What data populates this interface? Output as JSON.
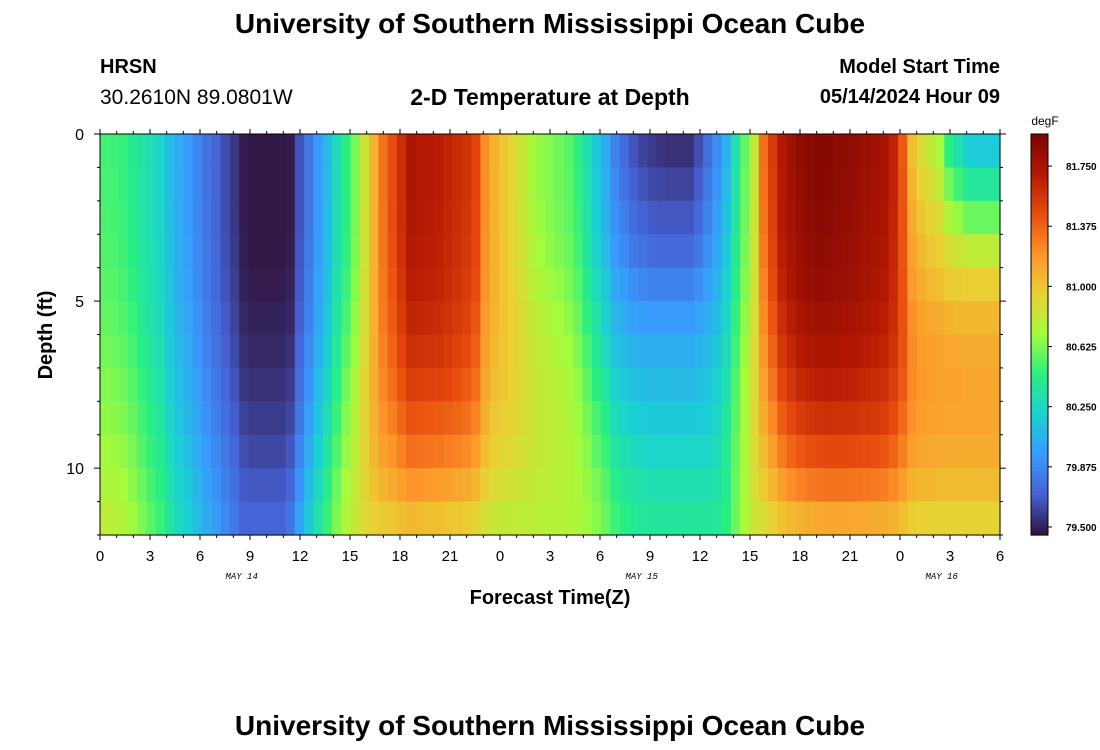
{
  "header": {
    "title": "University of Southern Mississippi Ocean Cube",
    "station": "HRSN",
    "coords": "30.2610N  89.0801W",
    "subtitle": "2-D Temperature at Depth",
    "model_label": "Model Start Time",
    "model_time": "05/14/2024 Hour 09"
  },
  "footer": {
    "title": "University of Southern Mississippi Ocean Cube"
  },
  "chart_data": {
    "type": "heatmap",
    "title": "2-D Temperature at Depth",
    "xlabel": "Forecast Time(Z)",
    "ylabel": "Depth (ft)",
    "x_tick_labels": [
      "0",
      "3",
      "6",
      "9",
      "12",
      "15",
      "18",
      "21",
      "0",
      "3",
      "6",
      "9",
      "12",
      "15",
      "18",
      "21",
      "0",
      "3",
      "6"
    ],
    "date_labels": [
      "MAY 14",
      "MAY 15",
      "MAY 16"
    ],
    "y_ticks": [
      0,
      5,
      10
    ],
    "ylim": [
      0,
      12
    ],
    "y_inverted": true,
    "x_range_hours": [
      0,
      54
    ],
    "x_hour_start": 0,
    "x_hour_step": 1,
    "depths_ft": [
      0.5,
      1.5,
      2.5,
      3.5,
      4.5,
      5.5,
      6.5,
      7.5,
      8.5,
      9.5,
      10.5,
      11.5
    ],
    "colorbar": {
      "unit": "degF",
      "min": 79.45,
      "max": 81.95,
      "ticks": [
        "81.750",
        "81.375",
        "81.000",
        "80.625",
        "80.250",
        "79.875",
        "79.500"
      ],
      "colormap": "turbo"
    },
    "note": "values in degF, rows = depth bins (top to bottom), columns = hourly forecast steps",
    "temperature_degF": [
      [
        80.5,
        80.49,
        80.47,
        80.41,
        80.35,
        80.3,
        80.23,
        80.11,
        80.02,
        79.95,
        79.86,
        79.78,
        79.72,
        79.64,
        79.57,
        79.48,
        79.47,
        79.47,
        79.47,
        79.47,
        79.48,
        79.66,
        79.8,
        79.95,
        80.09,
        80.28,
        80.45,
        80.61,
        80.84,
        81.07,
        81.32,
        81.45,
        81.59,
        81.73,
        81.71,
        81.7,
        81.68,
        81.64,
        81.61,
        81.57,
        81.49,
        81.22,
        81.07,
        81.0,
        80.91,
        80.82,
        80.73,
        80.67,
        80.63,
        80.59,
        80.55,
        80.46,
        80.31,
        80.16,
        80.02,
        79.85,
        79.75,
        79.66,
        79.61,
        79.58,
        79.56,
        79.55,
        79.55,
        79.55,
        79.64,
        79.76,
        79.89,
        80.05,
        80.32,
        80.56,
        80.81,
        81.33,
        81.53,
        81.71,
        81.79,
        81.85,
        81.88,
        81.9,
        81.89,
        81.87,
        81.86,
        81.84,
        81.81,
        81.79,
        81.75,
        81.65,
        81.41,
        81.03,
        80.9,
        80.81,
        80.71,
        80.45,
        80.32,
        80.2,
        80.18,
        80.18,
        80.18
      ],
      [
        80.51,
        80.5,
        80.47,
        80.42,
        80.35,
        80.3,
        80.23,
        80.11,
        80.03,
        79.95,
        79.86,
        79.78,
        79.72,
        79.64,
        79.57,
        79.48,
        79.47,
        79.47,
        79.47,
        79.47,
        79.48,
        79.66,
        79.8,
        79.95,
        80.09,
        80.28,
        80.45,
        80.61,
        80.84,
        81.07,
        81.32,
        81.45,
        81.59,
        81.73,
        81.71,
        81.7,
        81.68,
        81.64,
        81.61,
        81.57,
        81.49,
        81.22,
        81.08,
        81.0,
        80.91,
        80.82,
        80.73,
        80.67,
        80.63,
        80.59,
        80.56,
        80.47,
        80.32,
        80.18,
        80.05,
        79.88,
        79.79,
        79.7,
        79.66,
        79.63,
        79.62,
        79.61,
        79.61,
        79.61,
        79.69,
        79.81,
        79.93,
        80.09,
        80.34,
        80.58,
        80.82,
        81.32,
        81.52,
        81.71,
        81.78,
        81.84,
        81.87,
        81.89,
        81.88,
        81.86,
        81.85,
        81.83,
        81.8,
        81.78,
        81.75,
        81.65,
        81.42,
        81.07,
        80.95,
        80.88,
        80.8,
        80.6,
        80.49,
        80.39,
        80.38,
        80.38,
        80.38
      ],
      [
        80.52,
        80.51,
        80.48,
        80.43,
        80.36,
        80.3,
        80.24,
        80.12,
        80.03,
        79.96,
        79.87,
        79.79,
        79.72,
        79.64,
        79.57,
        79.48,
        79.47,
        79.47,
        79.47,
        79.47,
        79.48,
        79.66,
        79.8,
        79.95,
        80.1,
        80.29,
        80.45,
        80.61,
        80.85,
        81.07,
        81.31,
        81.45,
        81.59,
        81.72,
        81.7,
        81.69,
        81.67,
        81.63,
        81.6,
        81.56,
        81.48,
        81.22,
        81.08,
        81.0,
        80.92,
        80.83,
        80.74,
        80.68,
        80.64,
        80.6,
        80.57,
        80.48,
        80.34,
        80.2,
        80.07,
        79.91,
        79.83,
        79.75,
        79.71,
        79.68,
        79.67,
        79.67,
        79.67,
        79.67,
        79.74,
        79.85,
        79.97,
        80.13,
        80.37,
        80.59,
        80.83,
        81.31,
        81.51,
        81.7,
        81.77,
        81.83,
        81.86,
        81.88,
        81.87,
        81.85,
        81.84,
        81.82,
        81.79,
        81.77,
        81.74,
        81.64,
        81.43,
        81.11,
        81.0,
        80.94,
        80.88,
        80.74,
        80.67,
        80.59,
        80.58,
        80.58,
        80.58
      ],
      [
        80.53,
        80.52,
        80.49,
        80.44,
        80.37,
        80.31,
        80.25,
        80.13,
        80.04,
        79.97,
        79.88,
        79.8,
        79.73,
        79.65,
        79.58,
        79.49,
        79.47,
        79.47,
        79.47,
        79.47,
        79.49,
        79.67,
        79.81,
        79.96,
        80.11,
        80.3,
        80.46,
        80.62,
        80.85,
        81.07,
        81.31,
        81.44,
        81.58,
        81.71,
        81.69,
        81.68,
        81.66,
        81.62,
        81.59,
        81.55,
        81.47,
        81.21,
        81.08,
        81.01,
        80.93,
        80.85,
        80.76,
        80.7,
        80.66,
        80.62,
        80.59,
        80.5,
        80.36,
        80.23,
        80.1,
        79.95,
        79.88,
        79.81,
        79.78,
        79.75,
        79.74,
        79.74,
        79.74,
        79.74,
        79.8,
        79.9,
        80.01,
        80.17,
        80.4,
        80.61,
        80.84,
        81.29,
        81.49,
        81.68,
        81.75,
        81.81,
        81.84,
        81.86,
        81.85,
        81.83,
        81.82,
        81.8,
        81.77,
        81.75,
        81.72,
        81.63,
        81.43,
        81.15,
        81.05,
        81.0,
        80.96,
        80.88,
        80.84,
        80.8,
        80.79,
        80.79,
        80.79
      ],
      [
        80.55,
        80.54,
        80.51,
        80.46,
        80.39,
        80.32,
        80.26,
        80.14,
        80.05,
        79.98,
        79.89,
        79.81,
        79.74,
        79.66,
        79.59,
        79.5,
        79.48,
        79.48,
        79.48,
        79.48,
        79.5,
        79.68,
        79.83,
        79.98,
        80.13,
        80.32,
        80.48,
        80.64,
        80.86,
        81.08,
        81.3,
        81.42,
        81.56,
        81.68,
        81.67,
        81.66,
        81.64,
        81.6,
        81.57,
        81.53,
        81.45,
        81.2,
        81.08,
        81.01,
        80.95,
        80.87,
        80.79,
        80.73,
        80.69,
        80.66,
        80.62,
        80.54,
        80.41,
        80.28,
        80.16,
        80.02,
        79.96,
        79.9,
        79.87,
        79.85,
        79.85,
        79.85,
        79.85,
        79.85,
        79.9,
        79.97,
        80.06,
        80.21,
        80.43,
        80.63,
        80.85,
        81.26,
        81.46,
        81.65,
        81.73,
        81.79,
        81.82,
        81.84,
        81.83,
        81.82,
        81.81,
        81.79,
        81.76,
        81.74,
        81.71,
        81.62,
        81.44,
        81.18,
        81.1,
        81.06,
        81.02,
        80.98,
        80.97,
        80.96,
        80.96,
        80.96,
        80.96
      ],
      [
        80.57,
        80.56,
        80.53,
        80.48,
        80.41,
        80.34,
        80.28,
        80.16,
        80.07,
        80.0,
        79.91,
        79.83,
        79.76,
        79.68,
        79.61,
        79.52,
        79.5,
        79.5,
        79.5,
        79.5,
        79.52,
        79.7,
        79.85,
        80.0,
        80.16,
        80.35,
        80.51,
        80.66,
        80.88,
        81.08,
        81.29,
        81.4,
        81.53,
        81.64,
        81.63,
        81.62,
        81.6,
        81.57,
        81.54,
        81.5,
        81.42,
        81.18,
        81.07,
        81.01,
        80.96,
        80.89,
        80.82,
        80.77,
        80.73,
        80.7,
        80.66,
        80.58,
        80.46,
        80.34,
        80.22,
        80.08,
        80.03,
        79.98,
        79.96,
        79.95,
        79.95,
        79.95,
        79.95,
        79.95,
        79.99,
        80.04,
        80.11,
        80.25,
        80.47,
        80.66,
        80.87,
        81.23,
        81.42,
        81.6,
        81.68,
        81.74,
        81.77,
        81.79,
        81.79,
        81.78,
        81.77,
        81.75,
        81.73,
        81.71,
        81.68,
        81.6,
        81.44,
        81.22,
        81.15,
        81.12,
        81.1,
        81.07,
        81.06,
        81.05,
        81.05,
        81.05,
        81.05
      ],
      [
        80.6,
        80.59,
        80.56,
        80.51,
        80.44,
        80.37,
        80.3,
        80.18,
        80.09,
        80.02,
        79.93,
        79.85,
        79.78,
        79.7,
        79.63,
        79.54,
        79.52,
        79.52,
        79.52,
        79.52,
        79.55,
        79.73,
        79.88,
        80.04,
        80.2,
        80.39,
        80.55,
        80.69,
        80.9,
        81.09,
        81.27,
        81.37,
        81.49,
        81.59,
        81.58,
        81.57,
        81.56,
        81.53,
        81.5,
        81.46,
        81.38,
        81.16,
        81.05,
        81.0,
        80.96,
        80.9,
        80.84,
        80.79,
        80.76,
        80.73,
        80.7,
        80.62,
        80.51,
        80.39,
        80.28,
        80.15,
        80.1,
        80.06,
        80.04,
        80.03,
        80.03,
        80.03,
        80.03,
        80.03,
        80.06,
        80.1,
        80.16,
        80.29,
        80.5,
        80.68,
        80.89,
        81.19,
        81.37,
        81.55,
        81.63,
        81.69,
        81.72,
        81.74,
        81.74,
        81.73,
        81.72,
        81.71,
        81.69,
        81.67,
        81.64,
        81.57,
        81.43,
        81.24,
        81.18,
        81.16,
        81.14,
        81.12,
        81.12,
        81.11,
        81.11,
        81.11,
        81.11
      ],
      [
        80.63,
        80.62,
        80.59,
        80.54,
        80.47,
        80.4,
        80.33,
        80.21,
        80.12,
        80.05,
        79.96,
        79.88,
        79.81,
        79.73,
        79.66,
        79.57,
        79.55,
        79.55,
        79.55,
        79.55,
        79.58,
        79.76,
        79.92,
        80.09,
        80.25,
        80.43,
        80.59,
        80.73,
        80.92,
        81.09,
        81.24,
        81.33,
        81.43,
        81.52,
        81.51,
        81.5,
        81.49,
        81.47,
        81.44,
        81.4,
        81.33,
        81.13,
        81.03,
        80.99,
        80.95,
        80.9,
        80.85,
        80.81,
        80.78,
        80.75,
        80.72,
        80.66,
        80.56,
        80.45,
        80.35,
        80.22,
        80.17,
        80.13,
        80.11,
        80.1,
        80.1,
        80.1,
        80.1,
        80.1,
        80.12,
        80.15,
        80.21,
        80.33,
        80.53,
        80.7,
        80.9,
        81.15,
        81.31,
        81.48,
        81.56,
        81.62,
        81.65,
        81.67,
        81.68,
        81.67,
        81.66,
        81.65,
        81.63,
        81.61,
        81.59,
        81.52,
        81.4,
        81.24,
        81.19,
        81.17,
        81.15,
        81.14,
        81.14,
        81.13,
        81.13,
        81.13,
        81.13
      ],
      [
        80.66,
        80.65,
        80.62,
        80.57,
        80.5,
        80.43,
        80.36,
        80.24,
        80.15,
        80.08,
        79.99,
        79.91,
        79.84,
        79.76,
        79.69,
        79.6,
        79.58,
        79.58,
        79.58,
        79.58,
        79.62,
        79.8,
        79.97,
        80.14,
        80.3,
        80.48,
        80.63,
        80.76,
        80.93,
        81.08,
        81.2,
        81.27,
        81.36,
        81.43,
        81.42,
        81.41,
        81.4,
        81.38,
        81.36,
        81.33,
        81.26,
        81.09,
        81.0,
        80.96,
        80.93,
        80.89,
        80.85,
        80.81,
        80.79,
        80.77,
        80.74,
        80.69,
        80.6,
        80.51,
        80.42,
        80.29,
        80.24,
        80.2,
        80.18,
        80.17,
        80.17,
        80.17,
        80.17,
        80.17,
        80.18,
        80.2,
        80.25,
        80.37,
        80.55,
        80.71,
        80.9,
        81.1,
        81.24,
        81.39,
        81.47,
        81.53,
        81.56,
        81.58,
        81.59,
        81.58,
        81.58,
        81.57,
        81.55,
        81.54,
        81.52,
        81.46,
        81.35,
        81.21,
        81.17,
        81.15,
        81.14,
        81.13,
        81.13,
        81.13,
        81.13,
        81.13,
        81.13
      ],
      [
        80.7,
        80.69,
        80.66,
        80.61,
        80.54,
        80.47,
        80.4,
        80.28,
        80.19,
        80.12,
        80.03,
        79.95,
        79.88,
        79.8,
        79.73,
        79.64,
        79.62,
        79.62,
        79.62,
        79.62,
        79.67,
        79.86,
        80.03,
        80.2,
        80.36,
        80.53,
        80.67,
        80.78,
        80.93,
        81.05,
        81.14,
        81.2,
        81.27,
        81.33,
        81.32,
        81.31,
        81.3,
        81.28,
        81.26,
        81.23,
        81.17,
        81.03,
        80.96,
        80.92,
        80.9,
        80.87,
        80.84,
        80.81,
        80.79,
        80.77,
        80.75,
        80.71,
        80.64,
        80.56,
        80.48,
        80.36,
        80.31,
        80.27,
        80.25,
        80.24,
        80.24,
        80.24,
        80.24,
        80.24,
        80.24,
        80.25,
        80.29,
        80.4,
        80.57,
        80.72,
        80.89,
        81.04,
        81.16,
        81.29,
        81.36,
        81.41,
        81.44,
        81.46,
        81.47,
        81.47,
        81.47,
        81.46,
        81.45,
        81.44,
        81.42,
        81.37,
        81.28,
        81.16,
        81.13,
        81.12,
        81.11,
        81.1,
        81.1,
        81.1,
        81.1,
        81.1,
        81.1
      ],
      [
        80.74,
        80.73,
        80.7,
        80.65,
        80.58,
        80.51,
        80.44,
        80.32,
        80.23,
        80.16,
        80.07,
        79.99,
        79.92,
        79.84,
        79.77,
        79.68,
        79.67,
        79.67,
        79.67,
        79.67,
        79.73,
        79.92,
        80.1,
        80.27,
        80.42,
        80.58,
        80.71,
        80.8,
        80.92,
        81.01,
        81.07,
        81.11,
        81.16,
        81.2,
        81.19,
        81.18,
        81.17,
        81.15,
        81.13,
        81.11,
        81.06,
        80.96,
        80.9,
        80.87,
        80.85,
        80.83,
        80.81,
        80.79,
        80.78,
        80.77,
        80.75,
        80.72,
        80.67,
        80.61,
        80.54,
        80.43,
        80.38,
        80.34,
        80.32,
        80.31,
        80.31,
        80.31,
        80.31,
        80.31,
        80.31,
        80.31,
        80.33,
        80.42,
        80.58,
        80.72,
        80.87,
        80.97,
        81.06,
        81.16,
        81.22,
        81.26,
        81.29,
        81.31,
        81.32,
        81.32,
        81.32,
        81.31,
        81.3,
        81.29,
        81.28,
        81.24,
        81.17,
        81.08,
        81.06,
        81.05,
        81.04,
        81.04,
        81.04,
        81.04,
        81.04,
        81.04,
        81.04
      ],
      [
        80.78,
        80.77,
        80.74,
        80.69,
        80.62,
        80.55,
        80.48,
        80.36,
        80.27,
        80.2,
        80.11,
        80.03,
        79.96,
        79.88,
        79.81,
        79.72,
        79.72,
        79.72,
        79.72,
        79.72,
        79.79,
        79.99,
        80.17,
        80.34,
        80.48,
        80.62,
        80.74,
        80.81,
        80.9,
        80.95,
        80.98,
        81.0,
        81.03,
        81.05,
        81.04,
        81.03,
        81.02,
        81.0,
        80.99,
        80.97,
        80.93,
        80.87,
        80.83,
        80.81,
        80.8,
        80.79,
        80.78,
        80.77,
        80.76,
        80.76,
        80.75,
        80.73,
        80.69,
        80.64,
        80.58,
        80.49,
        80.44,
        80.4,
        80.38,
        80.37,
        80.37,
        80.37,
        80.37,
        80.37,
        80.37,
        80.37,
        80.38,
        80.45,
        80.59,
        80.72,
        80.84,
        80.89,
        80.95,
        81.01,
        81.05,
        81.08,
        81.1,
        81.12,
        81.13,
        81.13,
        81.13,
        81.12,
        81.12,
        81.11,
        81.1,
        81.08,
        81.03,
        80.97,
        80.95,
        80.94,
        80.94,
        80.94,
        80.94,
        80.94,
        80.94,
        80.94,
        80.94
      ]
    ]
  }
}
